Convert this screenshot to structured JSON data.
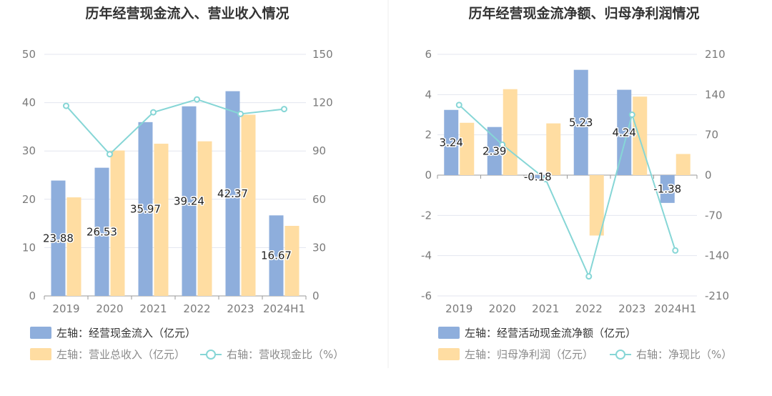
{
  "colors": {
    "bar_primary": "#8eaedc",
    "bar_secondary": "#ffdda2",
    "line": "#86d6d6",
    "grid": "#e3e6ef",
    "axis": "#9a9a9a",
    "divider": "#eeeeee"
  },
  "chart_data": [
    {
      "type": "bar",
      "title": "历年经营现金流入、营业收入情况",
      "categories": [
        "2019",
        "2020",
        "2021",
        "2022",
        "2023",
        "2024H1"
      ],
      "left_axis": {
        "min": 0,
        "max": 50,
        "ticks": [
          0,
          10,
          20,
          30,
          40,
          50
        ]
      },
      "right_axis": {
        "min": 0,
        "max": 150,
        "ticks": [
          0,
          30,
          60,
          90,
          120,
          150
        ]
      },
      "grid": true,
      "legend_position": "bottom-left",
      "series": [
        {
          "name": "左轴：经营现金流入（亿元）",
          "type": "bar",
          "axis": "left",
          "values": [
            23.88,
            26.53,
            35.97,
            39.24,
            42.37,
            16.67
          ],
          "labels": [
            "23.88",
            "26.53",
            "35.97",
            "39.24",
            "42.37",
            "16.67"
          ]
        },
        {
          "name": "左轴：营业总收入（亿元）",
          "type": "bar",
          "axis": "left",
          "values": [
            20.4,
            30.1,
            31.5,
            32.0,
            37.5,
            14.5
          ]
        },
        {
          "name": "右轴：营收现金比（%）",
          "type": "line",
          "axis": "right",
          "values": [
            118,
            88,
            114,
            122,
            113,
            116
          ]
        }
      ]
    },
    {
      "type": "bar",
      "title": "历年经营现金流净额、归母净利润情况",
      "categories": [
        "2019",
        "2020",
        "2021",
        "2022",
        "2023",
        "2024H1"
      ],
      "left_axis": {
        "min": -6,
        "max": 6,
        "ticks": [
          -6,
          -4,
          -2,
          0,
          2,
          4,
          6
        ]
      },
      "right_axis": {
        "min": -210,
        "max": 210,
        "ticks": [
          -210,
          -140,
          -70,
          0,
          70,
          140,
          210
        ]
      },
      "grid": true,
      "legend_position": "bottom-left",
      "series": [
        {
          "name": "左轴：经营活动现金流净额（亿元）",
          "type": "bar",
          "axis": "left",
          "values": [
            3.24,
            2.39,
            -0.18,
            5.23,
            4.24,
            -1.38
          ],
          "labels": [
            "3.24",
            "2.39",
            "-0.18",
            "5.23",
            "4.24",
            "-1.38"
          ]
        },
        {
          "name": "左轴：归母净利润（亿元）",
          "type": "bar",
          "axis": "left",
          "values": [
            2.6,
            4.27,
            2.57,
            -3.0,
            3.9,
            1.05
          ]
        },
        {
          "name": "右轴：净现比（%）",
          "type": "line",
          "axis": "right",
          "values": [
            122,
            53,
            -7,
            -176,
            105,
            -131
          ]
        }
      ]
    }
  ]
}
